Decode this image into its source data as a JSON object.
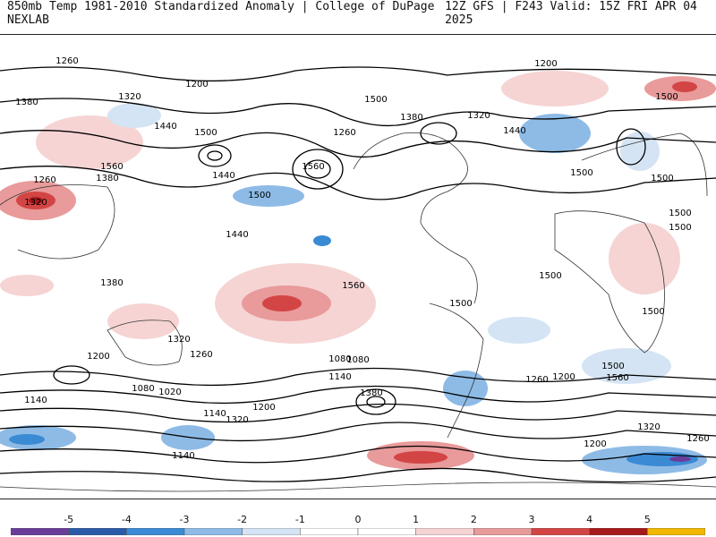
{
  "header": {
    "left_title": "850mb Temp 1981-2010 Standardized Anomaly | College of DuPage NEXLAB",
    "right_title": "12Z GFS | F243 Valid: 15Z FRI APR 04 2025"
  },
  "map": {
    "contour_labels": [
      "1260",
      "1200",
      "1320",
      "1380",
      "1440",
      "1500",
      "1560",
      "1260",
      "1320",
      "1380",
      "1440",
      "1500",
      "1560",
      "1260",
      "1500",
      "1380",
      "1320",
      "1440",
      "1200",
      "1500",
      "1500",
      "1500",
      "1500",
      "1500",
      "1500",
      "1500",
      "1500",
      "1560",
      "1440",
      "1380",
      "1320",
      "1260",
      "1200",
      "1140",
      "1080",
      "1020",
      "1140",
      "1200",
      "1320",
      "1380",
      "1080",
      "1080",
      "1140",
      "1260",
      "1200",
      "1500",
      "1560",
      "1320",
      "1260",
      "1200",
      "1140"
    ],
    "anomaly_colors": {
      "neg5": "#6a3d9a",
      "neg4": "#2b5aa6",
      "neg3": "#3a8ad4",
      "neg2": "#8ebbe6",
      "neg1": "#d4e4f4",
      "zero": "#ffffff",
      "pos1": "#f6d4d4",
      "pos2": "#e99a9a",
      "pos3": "#d34545",
      "pos4": "#a51a1a",
      "pos5": "#7a0a0a",
      "pos_extreme": "#f2b800"
    }
  },
  "colorbar": {
    "ticks": [
      "-5",
      "-4",
      "-3",
      "-2",
      "-1",
      "0",
      "1",
      "2",
      "3",
      "4",
      "5"
    ],
    "colors": [
      "#6a3d9a",
      "#2b5aa6",
      "#3a8ad4",
      "#8ebbe6",
      "#d4e4f4",
      "#ffffff",
      "#ffffff",
      "#f6d4d4",
      "#e99a9a",
      "#d34545",
      "#a51a1a",
      "#f2b800"
    ]
  }
}
